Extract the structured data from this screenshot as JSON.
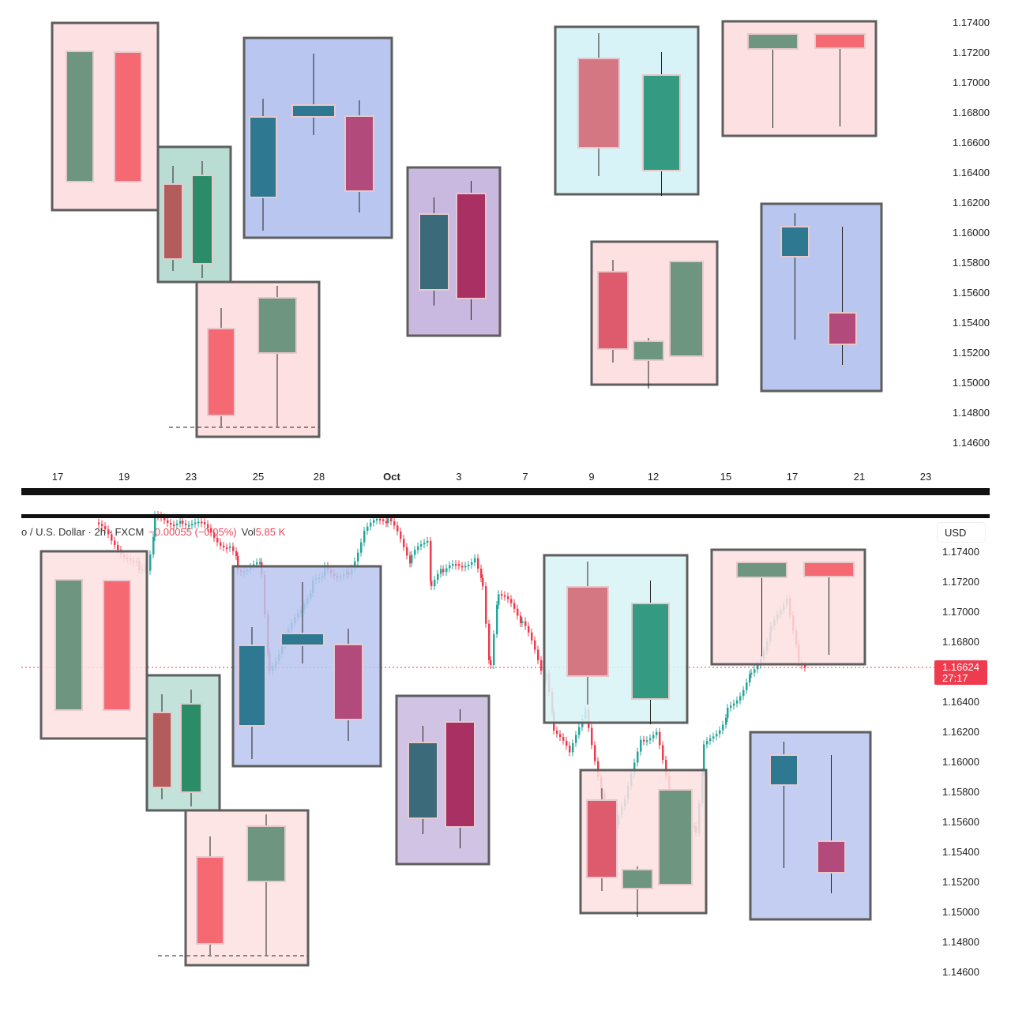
{
  "chart_data": {
    "type": "candlestick",
    "title": "",
    "symbol_legend": "o / U.S. Dollar · 2h · FXCM",
    "change": "−0.00055 (−0.05%)",
    "volume_label": "Vol",
    "volume_value": "5.85 K",
    "currency": "USD",
    "last_price": "1.16624",
    "countdown": "27:17",
    "y_ticks_top": [
      "1.17400",
      "1.17200",
      "1.17000",
      "1.16800",
      "1.16600",
      "1.16400",
      "1.16200",
      "1.16000",
      "1.15800",
      "1.15600",
      "1.15400",
      "1.15200",
      "1.15000",
      "1.14800",
      "1.14600"
    ],
    "y_ticks_bottom": [
      "1.17400",
      "1.17200",
      "1.17000",
      "1.16800",
      "1.16400",
      "1.16200",
      "1.16000",
      "1.15800",
      "1.15600",
      "1.15400",
      "1.15200",
      "1.15000",
      "1.14800",
      "1.14600"
    ],
    "x_ticks": [
      "17",
      "19",
      "23",
      "25",
      "28",
      "Oct",
      "3",
      "7",
      "9",
      "12",
      "15",
      "17",
      "21",
      "23"
    ],
    "ylim": [
      1.146,
      1.175
    ],
    "grid": false,
    "colors": {
      "up": "#26a69a",
      "down": "#ef3b4e",
      "last_price_line": "#ef3b4e",
      "box_border": "#5e5e5e",
      "box_pink": "#fde0e2",
      "box_green": "#b9ddd3",
      "box_blue": "#b8c6f0",
      "box_purple": "#c9b8df",
      "box_cyan": "#d8f3f7",
      "candle_sage": "#6e9580",
      "candle_salmon": "#f56a72",
      "candle_brick": "#b45c5c",
      "candle_emerald": "#2b8c6a",
      "candle_teal": "#2e7891",
      "candle_plum": "#b24b7c",
      "candle_slate": "#3b6a7b",
      "candle_crimson": "#a83062",
      "candle_rose": "#d47783",
      "candle_jade": "#359a82",
      "candle_red": "#de5a6d"
    }
  }
}
